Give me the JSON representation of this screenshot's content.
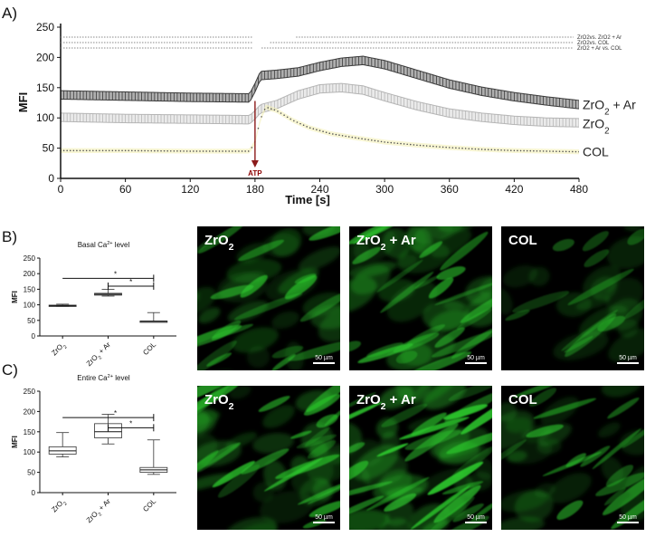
{
  "panels": {
    "a": "A)",
    "b": "B)",
    "c": "C)"
  },
  "stim_label": "ATP",
  "stim_time": 180,
  "colors": {
    "zro2_ar": "#555555",
    "zro2": "#c8c8c8",
    "col": "#f3f0b8",
    "col_dots": "#555555",
    "atp": "#8b1a1a",
    "green": "#2ecc2e"
  },
  "chart_data": [
    {
      "type": "line",
      "panel": "A",
      "xlabel": "Time [s]",
      "ylabel": "MFI",
      "xlim": [
        0,
        480
      ],
      "ylim": [
        0,
        250
      ],
      "xticks": [
        0,
        60,
        120,
        180,
        240,
        300,
        360,
        420,
        480
      ],
      "yticks": [
        0,
        50,
        100,
        150,
        200,
        250
      ],
      "significance_labels": [
        "ZrO2vs. ZrO2 + Ar",
        "ZrO2vs. COL",
        "ZrO2 + Ar vs. COL"
      ],
      "series": [
        {
          "name": "ZrO2 + Ar",
          "x": [
            0,
            60,
            120,
            175,
            180,
            185,
            200,
            220,
            240,
            260,
            280,
            300,
            330,
            360,
            390,
            420,
            450,
            480
          ],
          "values": [
            138,
            136,
            134,
            133,
            150,
            170,
            172,
            176,
            185,
            192,
            195,
            188,
            172,
            156,
            144,
            135,
            128,
            122
          ],
          "err": 7
        },
        {
          "name": "ZrO2",
          "x": [
            0,
            60,
            120,
            175,
            180,
            185,
            200,
            220,
            240,
            260,
            280,
            300,
            330,
            360,
            390,
            420,
            450,
            480
          ],
          "values": [
            101,
            99,
            98,
            97,
            105,
            115,
            122,
            138,
            148,
            150,
            146,
            135,
            120,
            108,
            101,
            96,
            93,
            92
          ],
          "err": 7
        },
        {
          "name": "COL",
          "x": [
            0,
            60,
            120,
            175,
            180,
            185,
            190,
            200,
            215,
            230,
            250,
            270,
            300,
            330,
            360,
            390,
            420,
            450,
            480
          ],
          "values": [
            46,
            46,
            45,
            45,
            60,
            98,
            118,
            112,
            96,
            84,
            74,
            68,
            60,
            55,
            51,
            48,
            46,
            45,
            44
          ],
          "err": 4
        }
      ]
    },
    {
      "type": "box",
      "panel": "B",
      "title": "Basal Ca2+ level",
      "ylabel": "MFI",
      "ylim": [
        0,
        250
      ],
      "yticks": [
        0,
        50,
        100,
        150,
        200,
        250
      ],
      "categories": [
        "ZrO2",
        "ZrO2 + Ar",
        "COL"
      ],
      "boxes": [
        {
          "min": 95,
          "q1": 96,
          "median": 97,
          "q3": 99,
          "max": 102
        },
        {
          "min": 128,
          "q1": 131,
          "median": 134,
          "q3": 137,
          "max": 150
        },
        {
          "min": 45,
          "q1": 46,
          "median": 47,
          "q3": 48,
          "max": 75
        }
      ],
      "sig_marks": [
        "*",
        "*"
      ]
    },
    {
      "type": "box",
      "panel": "C",
      "title": "Entire Ca2+ level",
      "ylabel": "MFI",
      "ylim": [
        0,
        250
      ],
      "yticks": [
        0,
        50,
        100,
        150,
        200,
        250
      ],
      "categories": [
        "ZrO2",
        "ZrO2 + Ar",
        "COL"
      ],
      "boxes": [
        {
          "min": 88,
          "q1": 95,
          "median": 103,
          "q3": 113,
          "max": 148
        },
        {
          "min": 120,
          "q1": 135,
          "median": 150,
          "q3": 170,
          "max": 193
        },
        {
          "min": 45,
          "q1": 50,
          "median": 56,
          "q3": 62,
          "max": 130
        }
      ],
      "sig_marks": [
        "*",
        "*"
      ]
    }
  ],
  "micrographs": [
    {
      "row": "basal",
      "label_base": "ZrO",
      "label_sub": "2",
      "label_tail": "",
      "scale": "50 µm",
      "density": 0.6
    },
    {
      "row": "basal",
      "label_base": "ZrO",
      "label_sub": "2",
      "label_tail": " + Ar",
      "scale": "50 µm",
      "density": 0.75
    },
    {
      "row": "basal",
      "label_base": "COL",
      "label_sub": "",
      "label_tail": "",
      "scale": "50 µm",
      "density": 0.25
    },
    {
      "row": "entire",
      "label_base": "ZrO",
      "label_sub": "2",
      "label_tail": "",
      "scale": "50 µm",
      "density": 0.8
    },
    {
      "row": "entire",
      "label_base": "ZrO",
      "label_sub": "2",
      "label_tail": " + Ar",
      "scale": "50 µm",
      "density": 1.0
    },
    {
      "row": "entire",
      "label_base": "COL",
      "label_sub": "",
      "label_tail": "",
      "scale": "50 µm",
      "density": 0.5
    }
  ]
}
